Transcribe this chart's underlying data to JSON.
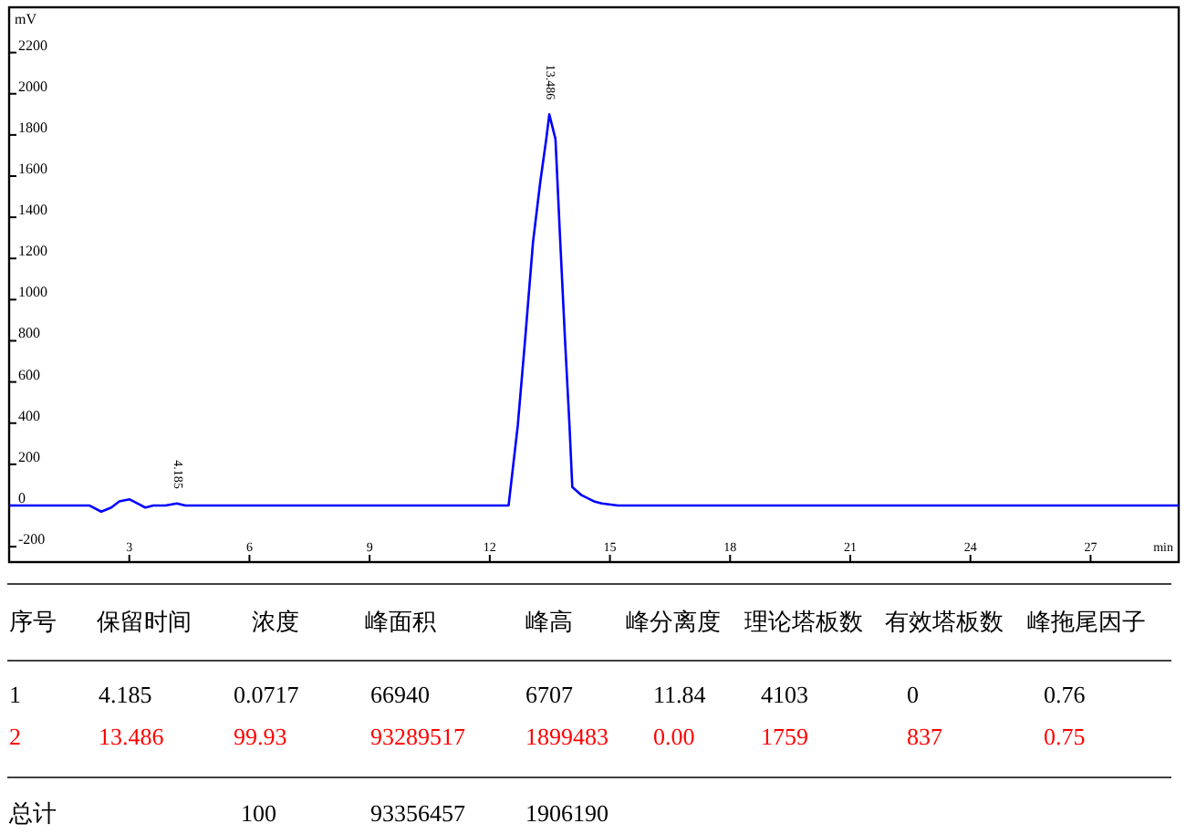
{
  "chart_data": {
    "type": "line",
    "xlabel": "min",
    "ylabel": "mV",
    "xlim": [
      0,
      29.2
    ],
    "ylim": [
      -275,
      2420
    ],
    "xticks": [
      3,
      6,
      9,
      12,
      15,
      18,
      21,
      24,
      27
    ],
    "yticks": [
      -200,
      0,
      200,
      400,
      600,
      800,
      1000,
      1200,
      1400,
      1600,
      1800,
      2000,
      2200
    ],
    "grid": false,
    "marker": "none",
    "line_style": "solid",
    "series": [
      {
        "color": "#0000ff",
        "x": [
          0,
          1.5,
          2.0,
          2.3,
          2.55,
          2.75,
          3.0,
          3.2,
          3.4,
          3.6,
          3.9,
          4.185,
          4.4,
          5,
          8,
          12,
          12.47,
          12.7,
          12.88,
          13.08,
          13.26,
          13.41,
          13.486,
          13.64,
          13.76,
          13.88,
          13.99,
          14.06,
          14.29,
          14.6,
          14.8,
          15.2,
          20,
          25,
          29.2
        ],
        "values": [
          0,
          0,
          0,
          -30,
          -10,
          20,
          30,
          10,
          -10,
          0,
          0,
          10,
          0,
          0,
          0,
          0,
          0,
          390,
          800,
          1280,
          1570,
          1780,
          1900,
          1780,
          1280,
          800,
          390,
          90,
          50,
          20,
          10,
          0,
          0,
          0,
          0
        ]
      }
    ],
    "annotations": [
      {
        "text": "4.185",
        "x": 4.185,
        "y": 10
      },
      {
        "text": "13.486",
        "x": 13.486,
        "y": 1900
      },
      "序号",
      "保留时间",
      "浓度",
      "峰面积",
      "峰高",
      "峰分离度",
      "理论塔板数",
      "有效塔板数",
      "峰拖尾因子",
      "1",
      "4.185",
      "0.0717",
      "66940",
      "6707",
      "11.84",
      "4103",
      "0",
      "0.76",
      "2",
      "13.486",
      "99.93",
      "93289517",
      "1899483",
      "0.00",
      "1759",
      "837",
      "0.75",
      "总计",
      "100",
      "93356457",
      "1906190"
    ]
  }
}
